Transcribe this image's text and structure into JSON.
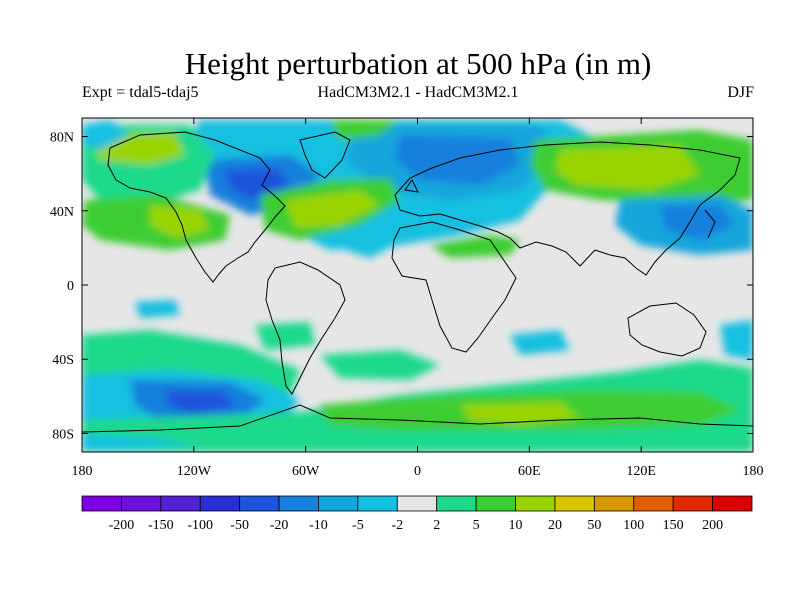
{
  "title": "Height perturbation at 500 hPa (in m)",
  "subtitle_left": "Expt = tdal5-tdaj5",
  "subtitle_center": "HadCM3M2.1 - HadCM3M2.1",
  "subtitle_right": "DJF",
  "map": {
    "lon_range": [
      -180,
      180
    ],
    "lat_range": [
      -90,
      90
    ],
    "x_ticks": [
      "180",
      "120W",
      "60W",
      "0",
      "60E",
      "120E",
      "180"
    ],
    "y_ticks": [
      "80N",
      "40N",
      "0",
      "40S",
      "80S"
    ]
  },
  "colorbar": {
    "labels": [
      "-200",
      "-150",
      "-100",
      "-50",
      "-20",
      "-10",
      "-5",
      "-2",
      "2",
      "5",
      "10",
      "20",
      "50",
      "100",
      "150",
      "200"
    ],
    "colors": [
      "#7d00e0",
      "#6a12da",
      "#5022d2",
      "#2a2fd4",
      "#1a55dc",
      "#1780dc",
      "#12a6dc",
      "#14c0e0",
      "#e6e6e6",
      "#1ed98c",
      "#3ccd32",
      "#9ad400",
      "#d8c400",
      "#d89800",
      "#e06000",
      "#e02a00",
      "#d80000"
    ]
  }
}
